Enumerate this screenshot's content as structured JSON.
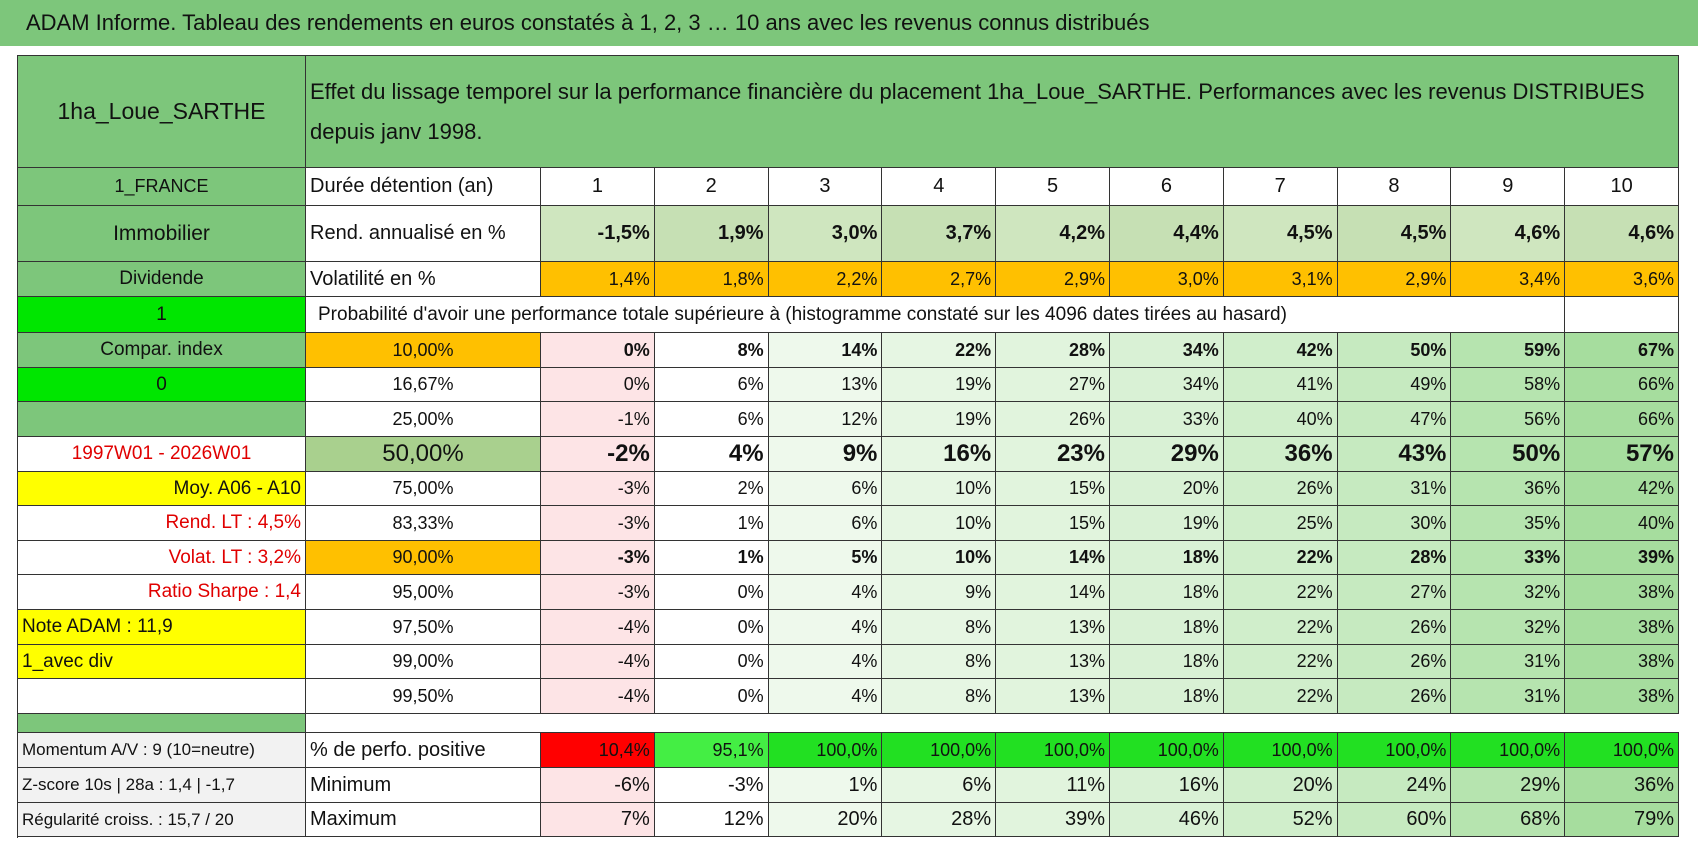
{
  "header": {
    "title": "ADAM Informe. Tableau des rendements en euros constatés à 1, 2, 3 … 10 ans avec les revenus connus distribués"
  },
  "table": {
    "title_cell": "1ha_Loue_SARTHE",
    "description": "Effet du lissage temporel sur la performance financière du placement 1ha_Loue_SARTHE. Performances avec les revenus DISTRIBUES depuis janv 1998.",
    "rows": [
      [
        "1_FRANCE",
        "Durée détention (an)",
        "1",
        "2",
        "3",
        "4",
        "5",
        "6",
        "7",
        "8",
        "9",
        "10"
      ],
      [
        "Immobilier",
        "Rend. annualisé en %",
        "-1,5%",
        "1,9%",
        "3,0%",
        "3,7%",
        "4,2%",
        "4,4%",
        "4,5%",
        "4,5%",
        "4,6%",
        "4,6%"
      ],
      [
        "Dividende",
        "Volatilité en %",
        "1,4%",
        "1,8%",
        "2,2%",
        "2,7%",
        "2,9%",
        "3,0%",
        "3,1%",
        "2,9%",
        "3,4%",
        "3,6%"
      ],
      [
        "1",
        "Probabilité d'avoir une performance totale supérieure à (histogramme constaté sur les 4096 dates tirées au hasard)"
      ],
      [
        "Compar. index",
        "10,00%",
        "0%",
        "8%",
        "14%",
        "22%",
        "28%",
        "34%",
        "42%",
        "50%",
        "59%",
        "67%"
      ],
      [
        "0",
        "16,67%",
        "0%",
        "6%",
        "13%",
        "19%",
        "27%",
        "34%",
        "41%",
        "49%",
        "58%",
        "66%"
      ],
      [
        null,
        "25,00%",
        "-1%",
        "6%",
        "12%",
        "19%",
        "26%",
        "33%",
        "40%",
        "47%",
        "56%",
        "66%"
      ],
      [
        "1997W01 - 2026W01",
        "50,00%",
        "-2%",
        "4%",
        "9%",
        "16%",
        "23%",
        "29%",
        "36%",
        "43%",
        "50%",
        "57%"
      ],
      [
        "Moy. A06 - A10",
        "75,00%",
        "-3%",
        "2%",
        "6%",
        "10%",
        "15%",
        "20%",
        "26%",
        "31%",
        "36%",
        "42%"
      ],
      [
        "Rend. LT :   4,5%",
        "83,33%",
        "-3%",
        "1%",
        "6%",
        "10%",
        "15%",
        "19%",
        "25%",
        "30%",
        "35%",
        "40%"
      ],
      [
        "Volat. LT :   3,2%",
        "90,00%",
        "-3%",
        "1%",
        "5%",
        "10%",
        "14%",
        "18%",
        "22%",
        "28%",
        "33%",
        "39%"
      ],
      [
        "Ratio Sharpe :    1,4",
        "95,00%",
        "-3%",
        "0%",
        "4%",
        "9%",
        "14%",
        "18%",
        "22%",
        "27%",
        "32%",
        "38%"
      ],
      [
        "Note ADAM : 11,9",
        "97,50%",
        "-4%",
        "0%",
        "4%",
        "8%",
        "13%",
        "18%",
        "22%",
        "26%",
        "32%",
        "38%"
      ],
      [
        "1_avec div",
        "99,00%",
        "-4%",
        "0%",
        "4%",
        "8%",
        "13%",
        "18%",
        "22%",
        "26%",
        "31%",
        "38%"
      ],
      [
        null,
        "99,50%",
        "-4%",
        "0%",
        "4%",
        "8%",
        "13%",
        "18%",
        "22%",
        "26%",
        "31%",
        "38%"
      ],
      [
        "Momentum A/V : 9 (10=neutre)",
        "% de perfo. positive",
        "10,4%",
        "95,1%",
        "100,0%",
        "100,0%",
        "100,0%",
        "100,0%",
        "100,0%",
        "100,0%",
        "100,0%",
        "100,0%"
      ],
      [
        "Z-score 10s | 28a : 1,4 | -1,7",
        "Minimum",
        "-6%",
        "-3%",
        "1%",
        "6%",
        "11%",
        "16%",
        "20%",
        "24%",
        "29%",
        "36%"
      ],
      [
        "Régularité croiss. : 15,7 / 20",
        "Maximum",
        "7%",
        "12%",
        "20%",
        "28%",
        "39%",
        "46%",
        "52%",
        "60%",
        "68%",
        "79%"
      ]
    ]
  }
}
